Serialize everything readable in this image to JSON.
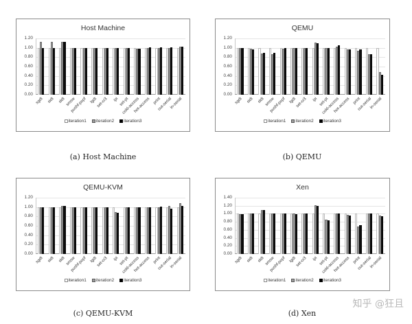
{
  "chart_data": [
    {
      "type": "bar",
      "title": "Host Machine",
      "caption": "(a) Host Machine",
      "xlabel": "",
      "ylabel": "",
      "ylim": [
        0,
        1.2
      ],
      "yticks": [
        "1.20",
        "1.00",
        "0.80",
        "0.60",
        "0.40",
        "0.20",
        "0.00"
      ],
      "grid": true,
      "legend_position": "bottom",
      "categories": [
        "sgdt",
        "sidt",
        "sldt",
        "smsw",
        "pushf-popf",
        "lgdt",
        "set-cr3",
        "ipi",
        "set-pt",
        "cold-access",
        "hot-access",
        "print",
        "out-serial",
        "in-serial"
      ],
      "series": [
        {
          "name": "iteration1",
          "values": [
            1.0,
            1.0,
            1.0,
            1.0,
            1.0,
            1.0,
            1.0,
            1.0,
            1.0,
            1.0,
            1.0,
            1.0,
            1.0,
            1.0
          ]
        },
        {
          "name": "iteration2",
          "values": [
            1.13,
            1.13,
            1.13,
            1.0,
            1.0,
            1.0,
            1.0,
            1.0,
            1.0,
            0.98,
            1.0,
            1.0,
            1.0,
            1.02
          ]
        },
        {
          "name": "iteration3",
          "values": [
            1.0,
            1.0,
            1.13,
            1.0,
            1.0,
            1.0,
            1.0,
            1.0,
            1.0,
            0.98,
            1.01,
            1.01,
            1.01,
            1.02
          ]
        }
      ]
    },
    {
      "type": "bar",
      "title": "QEMU",
      "caption": "(b) QEMU",
      "xlabel": "",
      "ylabel": "",
      "ylim": [
        0,
        1.2
      ],
      "yticks": [
        "1.20",
        "1.00",
        "0.80",
        "0.60",
        "0.40",
        "0.20",
        "0.00"
      ],
      "grid": true,
      "legend_position": "bottom",
      "categories": [
        "sgdt",
        "sidt",
        "sldt",
        "smsw",
        "pushf-popf",
        "lgdt",
        "set-cr3",
        "ipi",
        "set-pt",
        "cold-access",
        "hot-access",
        "print",
        "out-serial",
        "in-serial"
      ],
      "series": [
        {
          "name": "iteration1",
          "values": [
            1.0,
            1.0,
            1.0,
            1.0,
            1.0,
            1.0,
            1.0,
            1.0,
            1.0,
            1.0,
            1.0,
            1.0,
            1.0,
            1.0
          ]
        },
        {
          "name": "iteration2",
          "values": [
            0.99,
            0.98,
            0.88,
            0.86,
            0.98,
            1.0,
            1.0,
            1.11,
            0.99,
            1.03,
            0.96,
            0.94,
            0.87,
            0.48
          ]
        },
        {
          "name": "iteration3",
          "values": [
            0.99,
            0.97,
            0.89,
            0.89,
            1.0,
            0.99,
            1.0,
            1.1,
            1.0,
            1.05,
            0.96,
            0.96,
            0.86,
            0.42
          ]
        }
      ]
    },
    {
      "type": "bar",
      "title": "QEMU-KVM",
      "caption": "(c) QEMU-KVM",
      "xlabel": "",
      "ylabel": "",
      "ylim": [
        0,
        1.2
      ],
      "yticks": [
        "1.20",
        "1.00",
        "0.80",
        "0.60",
        "0.40",
        "0.20",
        "0.00"
      ],
      "grid": true,
      "legend_position": "bottom",
      "categories": [
        "sgdt",
        "sidt",
        "sldt",
        "smsw",
        "pushf-popf",
        "lgdt",
        "set-cr3",
        "ipi",
        "set-pt",
        "cold-access",
        "hot-access",
        "print",
        "out-serial",
        "in-serial"
      ],
      "series": [
        {
          "name": "iteration1",
          "values": [
            1.0,
            1.0,
            1.0,
            1.0,
            1.0,
            1.0,
            1.0,
            1.0,
            1.0,
            1.0,
            1.0,
            1.0,
            1.0,
            1.0
          ]
        },
        {
          "name": "iteration2",
          "values": [
            1.0,
            0.99,
            1.02,
            0.99,
            1.0,
            1.0,
            1.0,
            0.9,
            1.0,
            1.0,
            1.0,
            0.99,
            1.02,
            1.08
          ]
        },
        {
          "name": "iteration3",
          "values": [
            1.0,
            0.99,
            1.02,
            0.99,
            1.0,
            1.0,
            1.0,
            0.88,
            1.0,
            1.0,
            0.99,
            1.01,
            0.97,
            1.02
          ]
        }
      ]
    },
    {
      "type": "bar",
      "title": "Xen",
      "caption": "(d) Xen",
      "xlabel": "",
      "ylabel": "",
      "ylim": [
        0,
        1.4
      ],
      "yticks": [
        "1.40",
        "1.20",
        "1.00",
        "0.80",
        "0.60",
        "0.40",
        "0.20",
        "0.00"
      ],
      "grid": true,
      "legend_position": "bottom",
      "categories": [
        "sgdt",
        "sidt",
        "sldt",
        "smsw",
        "pushf-popf",
        "lgdt",
        "set-cr3",
        "ipi",
        "set-pt",
        "cold-access",
        "hot-access",
        "print",
        "out-serial",
        "in-serial"
      ],
      "series": [
        {
          "name": "iteration1",
          "values": [
            1.0,
            1.0,
            1.0,
            1.0,
            1.0,
            1.0,
            1.0,
            1.0,
            1.0,
            1.0,
            1.0,
            1.0,
            1.0,
            1.0
          ]
        },
        {
          "name": "iteration2",
          "values": [
            0.99,
            1.0,
            1.1,
            1.0,
            1.0,
            1.0,
            1.0,
            1.22,
            0.85,
            1.0,
            0.97,
            0.69,
            1.0,
            0.96
          ]
        },
        {
          "name": "iteration3",
          "values": [
            0.99,
            1.0,
            1.09,
            1.0,
            1.0,
            0.99,
            1.0,
            1.19,
            0.83,
            1.0,
            0.96,
            0.72,
            1.01,
            0.94
          ]
        }
      ]
    }
  ],
  "legend": [
    "iteration1",
    "iteration2",
    "iteration3"
  ],
  "watermark": "知乎 @狂且"
}
